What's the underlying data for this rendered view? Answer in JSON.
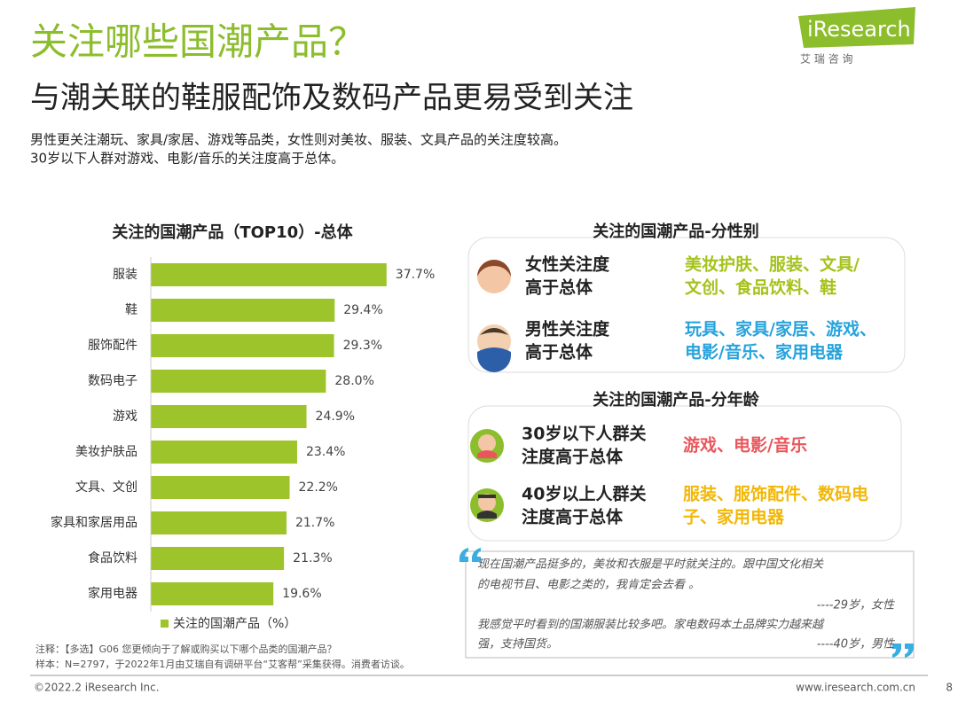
{
  "header": {
    "title": "关注哪些国潮产品？",
    "subtitle": "与潮关联的鞋服配饰及数码产品更易受到关注",
    "description": [
      "男性更关注潮玩、家具/家居、游戏等品类，女性则对美妆、服装、文具产品的关注度较高。",
      "30岁以下人群对游戏、电影/音乐的关注度高于总体。"
    ]
  },
  "logo": {
    "brand": "iResearch",
    "tagline": "艾 瑞 咨 询"
  },
  "chart_data": {
    "type": "bar",
    "orientation": "horizontal",
    "title": "关注的国潮产品（TOP10）-总体",
    "categories": [
      "服装",
      "鞋",
      "服饰配件",
      "数码电子",
      "游戏",
      "美妆护肤品",
      "文具、文创",
      "家具和家居用品",
      "食品饮料",
      "家用电器"
    ],
    "series": [
      {
        "name": "关注的国潮产品（%）",
        "color": "#9dc42a",
        "values": [
          37.7,
          29.4,
          29.3,
          28.0,
          24.9,
          23.4,
          22.2,
          21.7,
          21.3,
          19.6
        ],
        "value_labels": [
          "37.7%",
          "29.4%",
          "29.3%",
          "28.0%",
          "24.9%",
          "23.4%",
          "22.2%",
          "21.7%",
          "21.3%",
          "19.6%"
        ]
      }
    ],
    "xlim": [
      0,
      40
    ],
    "legend": "bottom"
  },
  "gender_panel": {
    "title": "关注的国潮产品-分性别",
    "rows": [
      {
        "label": [
          "女性关注度",
          "高于总体"
        ],
        "highlight": [
          "美妆护肤、服装、文具/",
          "文创、食品饮料、鞋"
        ],
        "color": "#a5c21b"
      },
      {
        "label": [
          "男性关注度",
          "高于总体"
        ],
        "highlight": [
          "玩具、家具/家居、游戏、",
          "电影/音乐、家用电器"
        ],
        "color": "#27a3dc"
      }
    ]
  },
  "age_panel": {
    "title": "关注的国潮产品-分年龄",
    "rows": [
      {
        "label": [
          "30岁以下人群关",
          "注度高于总体"
        ],
        "highlight": [
          "游戏、电影/音乐"
        ],
        "color": "#e9565c"
      },
      {
        "label": [
          "40岁以上人群关",
          "注度高于总体"
        ],
        "highlight": [
          "服装、服饰配件、数码电",
          "子、家用电器"
        ],
        "color": "#f2b705"
      }
    ]
  },
  "quotes": [
    "现在国潮产品挺多的，美妆和衣服是平时就关注的。跟中国文化相关",
    "的电视节目、电影之类的，我肯定会去看 。",
    "----29岁，女性",
    "我感觉平时看到的国潮服装比较多吧。家电数码本土品牌实力越来越",
    "强，支持国货。",
    "----40岁，男性"
  ],
  "notes": [
    "注释：【多选】G06 您更倾向于了解或购买以下哪个品类的国潮产品？",
    "样本：N=2797，于2022年1月由艾瑞自有调研平台“艾客帮”采集获得。消费者访谈。"
  ],
  "footer": {
    "copyright": "©2022.2 iResearch Inc.",
    "website": "www.iresearch.com.cn",
    "page": "8"
  }
}
